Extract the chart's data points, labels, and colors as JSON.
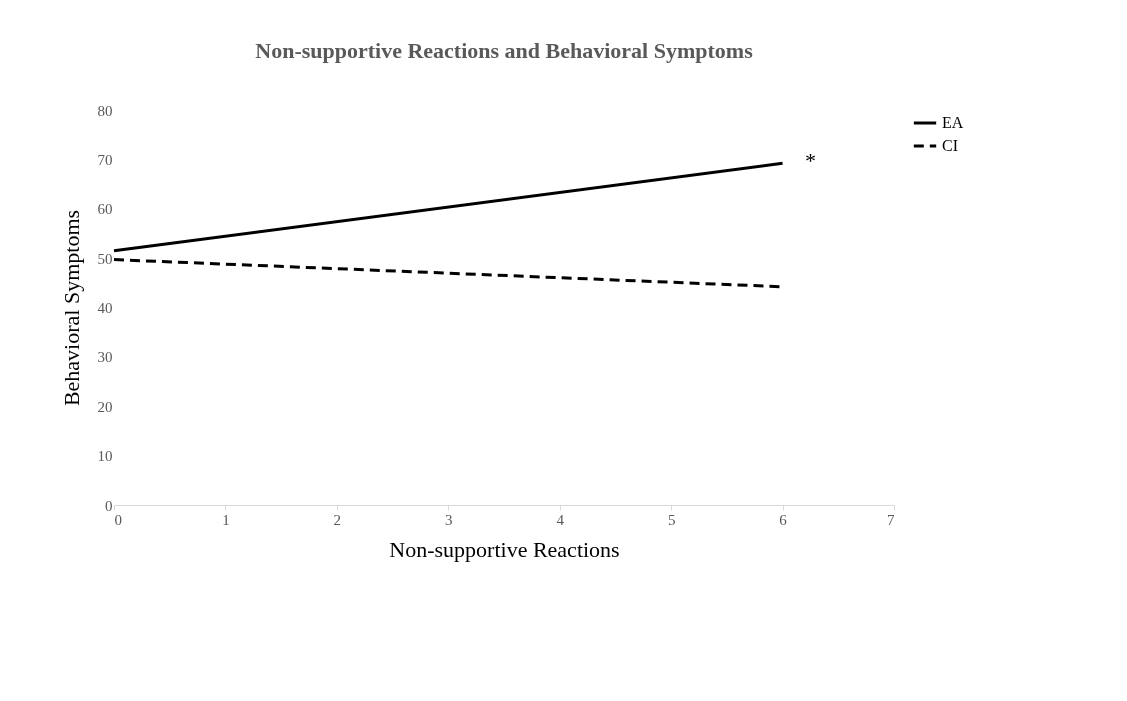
{
  "chart_data": {
    "type": "line",
    "title": "Non-supportive Reactions and Behavioral Symptoms",
    "xlabel": "Non-supportive Reactions",
    "ylabel": "Behavioral Symptoms",
    "x": [
      0,
      6
    ],
    "series": [
      {
        "name": "EA",
        "color": "#000000",
        "line_style": "solid",
        "values": [
          51.5,
          69.2
        ]
      },
      {
        "name": "CI",
        "color": "#000000",
        "line_style": "dashed",
        "values": [
          49.7,
          44.2
        ]
      }
    ],
    "xlim": [
      0,
      7
    ],
    "xticks": [
      0,
      1,
      2,
      3,
      4,
      5,
      6,
      7
    ],
    "ylim": [
      0,
      80
    ],
    "yticks": [
      0,
      10,
      20,
      30,
      40,
      50,
      60,
      70,
      80
    ],
    "grid": false,
    "legend": "right",
    "marker": "none",
    "annotations": [
      "*"
    ]
  }
}
